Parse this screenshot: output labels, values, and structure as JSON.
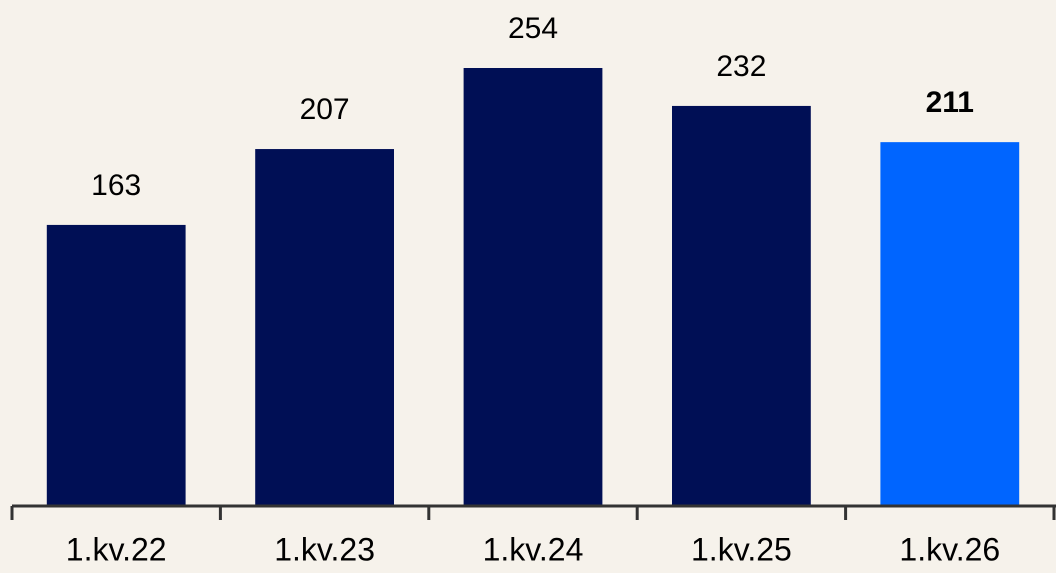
{
  "chart_data": {
    "type": "bar",
    "categories": [
      "1.kv.22",
      "1.kv.23",
      "1.kv.24",
      "1.kv.25",
      "1.kv.26"
    ],
    "values": [
      163,
      207,
      254,
      232,
      211
    ],
    "colors": [
      "#000f55",
      "#000f55",
      "#000f55",
      "#000f55",
      "#0065ff"
    ],
    "bold_labels": [
      false,
      false,
      false,
      false,
      true
    ]
  }
}
